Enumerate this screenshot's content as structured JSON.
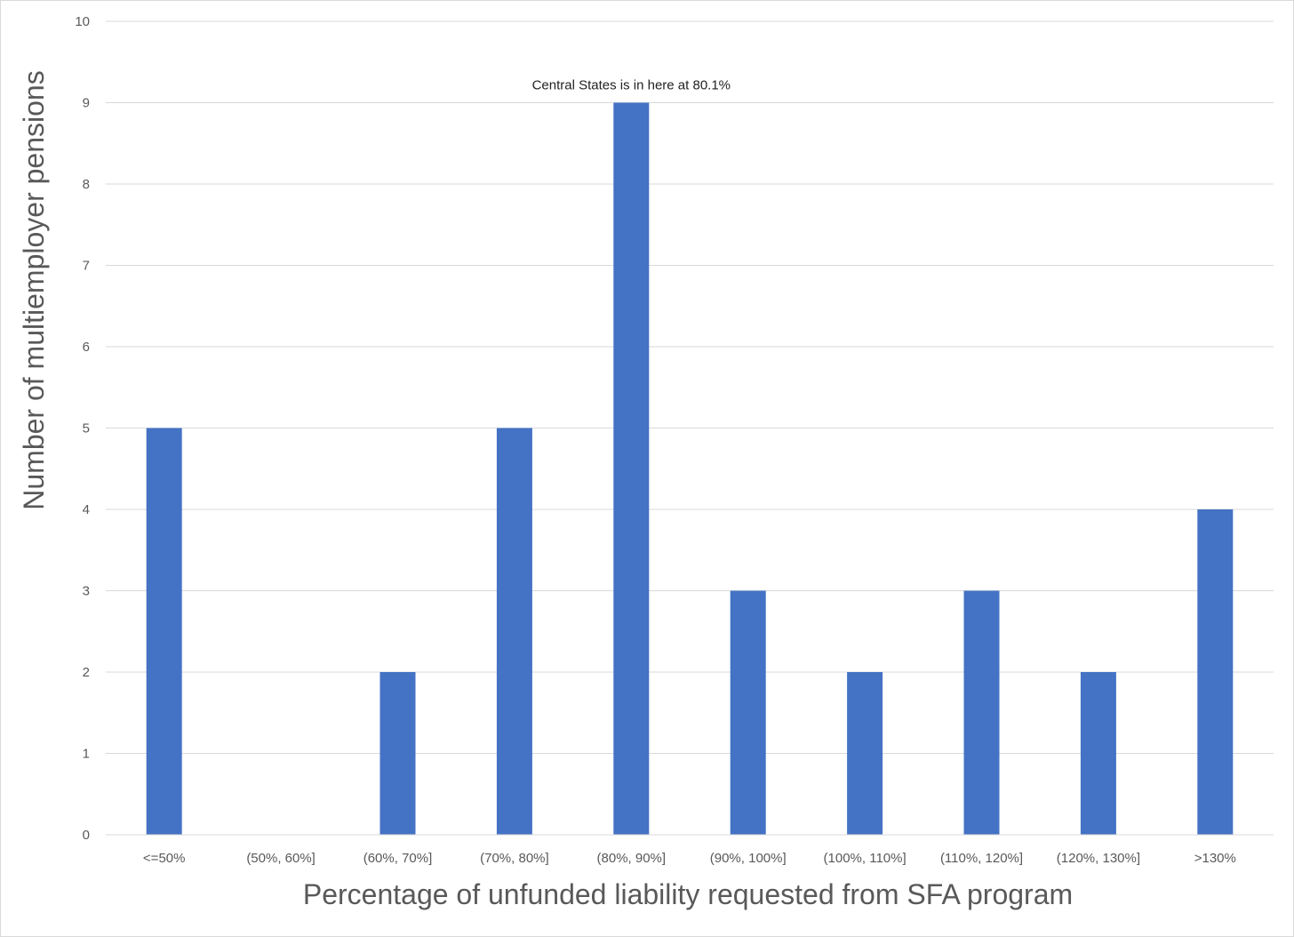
{
  "chart_data": {
    "type": "bar",
    "title": "",
    "xlabel": "Percentage of unfunded liability requested from SFA program",
    "ylabel": "Number of multiemployer pensions",
    "categories": [
      "<=50%",
      "(50%, 60%]",
      "(60%, 70%]",
      "(70%, 80%]",
      "(80%, 90%]",
      "(90%, 100%]",
      "(100%, 110%]",
      "(110%, 120%]",
      "(120%, 130%]",
      ">130%"
    ],
    "values": [
      5,
      0,
      2,
      5,
      9,
      3,
      2,
      3,
      2,
      4
    ],
    "ylim": [
      0,
      10
    ],
    "yticks": [
      0,
      1,
      2,
      3,
      4,
      5,
      6,
      7,
      8,
      9,
      10
    ],
    "grid": true,
    "legend": "none",
    "bar_color": "#4472C4",
    "grid_color": "#d9d9d9",
    "annotations": [
      {
        "text": "Central States is in here at 80.1%",
        "category": "(80%, 90%]"
      }
    ]
  }
}
